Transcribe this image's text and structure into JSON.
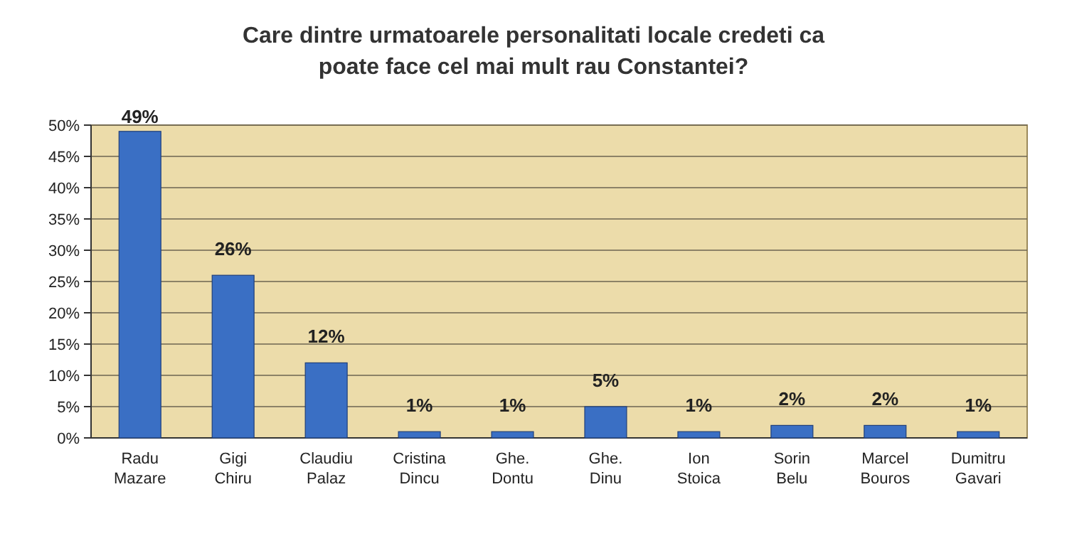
{
  "chart_data": {
    "type": "bar",
    "title": "Care dintre urmatoarele  personalitati locale credeti ca poate face cel mai mult rau Constantei?",
    "categories": [
      "Radu Mazare",
      "Gigi Chiru",
      "Claudiu Palaz",
      "Cristina Dincu",
      "Ghe. Dontu",
      "Ghe. Dinu",
      "Ion Stoica",
      "Sorin Belu",
      "Marcel Bouros",
      "Dumitru Gavari"
    ],
    "values": [
      49,
      26,
      12,
      1,
      1,
      5,
      1,
      2,
      2,
      1
    ],
    "value_labels": [
      "49%",
      "26%",
      "12%",
      "1%",
      "1%",
      "5%",
      "1%",
      "2%",
      "2%",
      "1%"
    ],
    "color": "#3a6fc4",
    "ylim": [
      0,
      50
    ],
    "yticks": [
      {
        "value": 0,
        "label": "0%"
      },
      {
        "value": 5,
        "label": "5%"
      },
      {
        "value": 10,
        "label": "10%"
      },
      {
        "value": 15,
        "label": "15%"
      },
      {
        "value": 20,
        "label": "20%"
      },
      {
        "value": 25,
        "label": "25%"
      },
      {
        "value": 30,
        "label": "30%"
      },
      {
        "value": 35,
        "label": "35%"
      },
      {
        "value": 40,
        "label": "40%"
      },
      {
        "value": 45,
        "label": "45%"
      },
      {
        "value": 50,
        "label": "50%"
      }
    ],
    "grid": true
  }
}
